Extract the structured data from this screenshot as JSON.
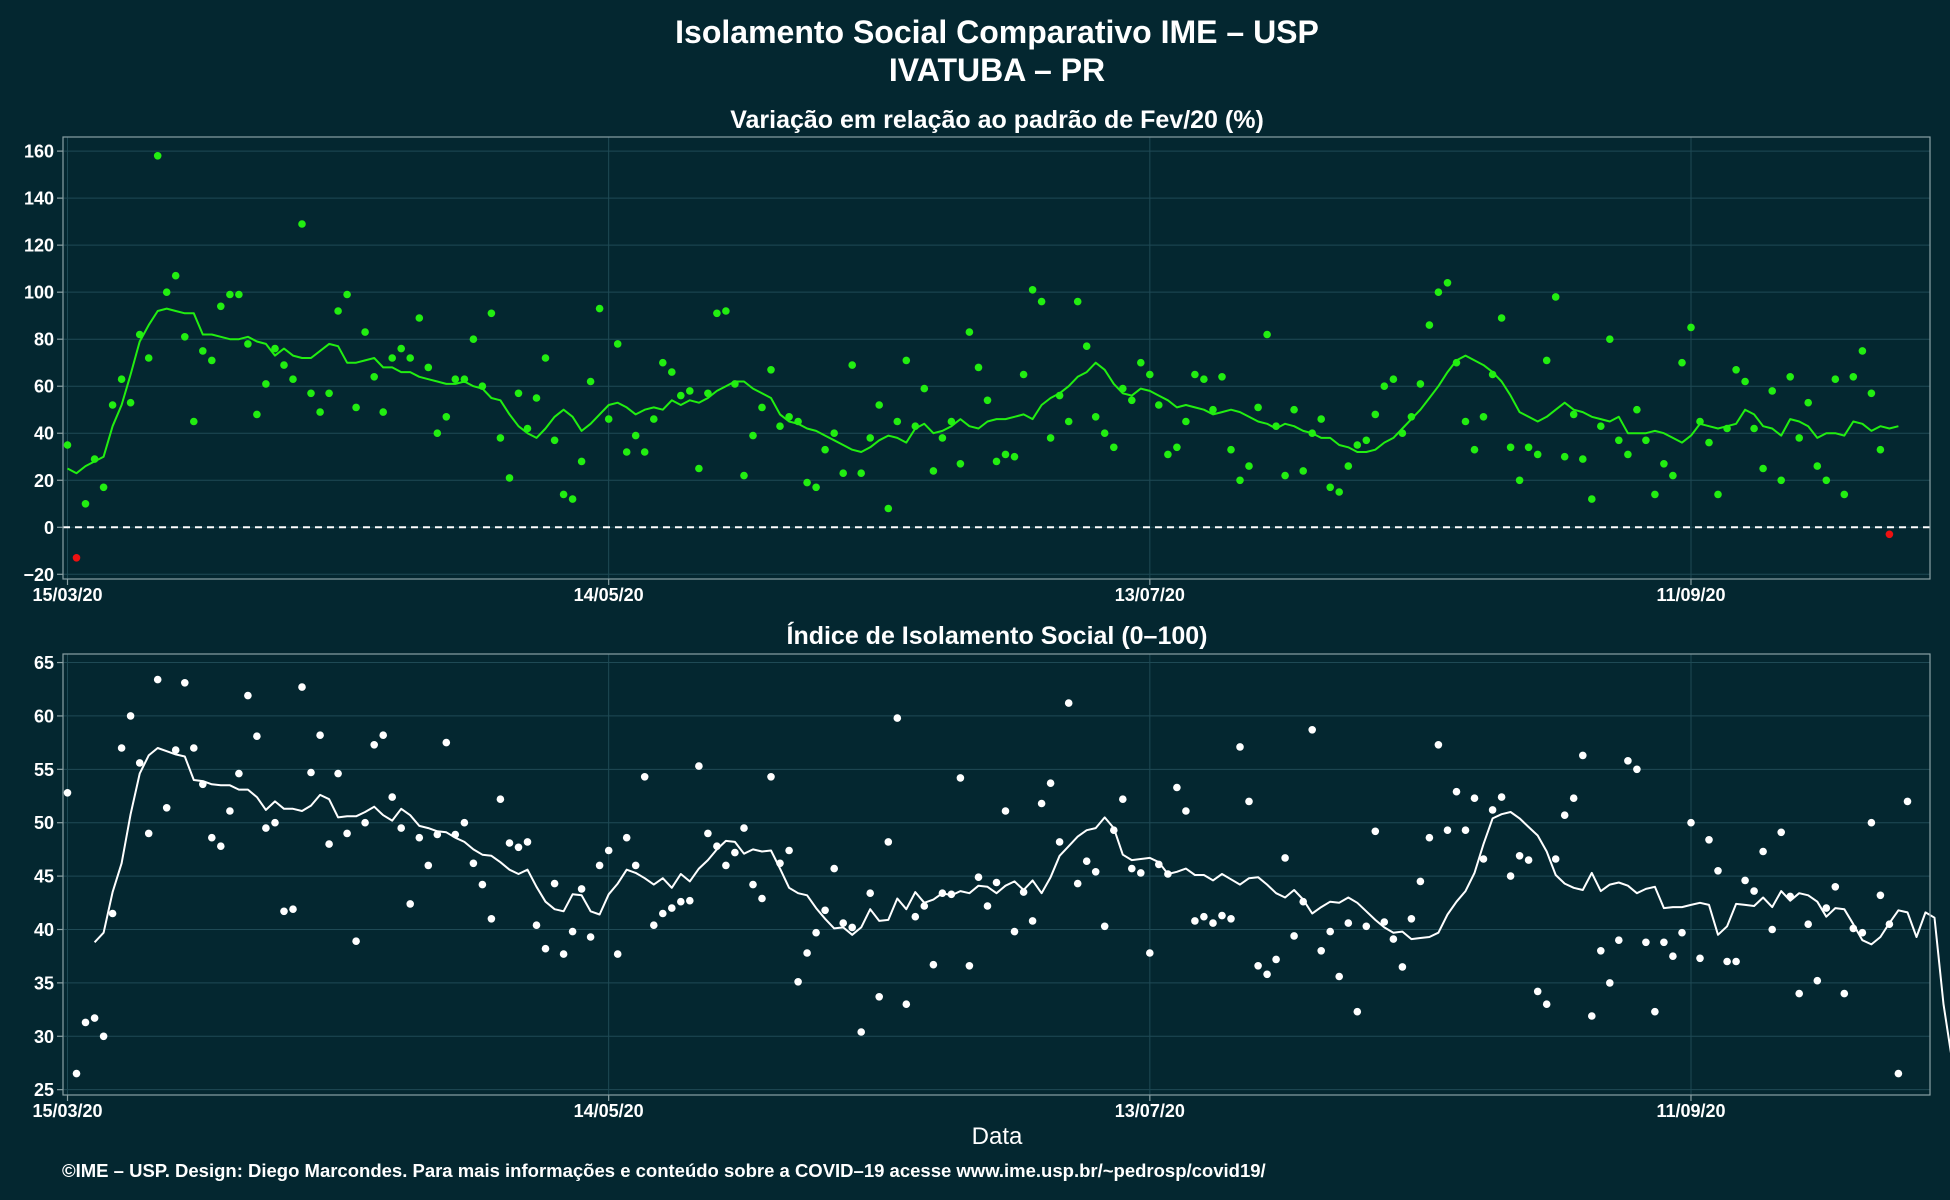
{
  "title": "Isolamento Social Comparativo IME – USP",
  "subtitle": "IVATUBA – PR",
  "footer": "©IME – USP. Design: Diego Marcondes. Para mais informações e conteúdo sobre a COVID–19 acesse www.ime.usp.br/~pedrosp/covid19/",
  "colors": {
    "background": "#042730",
    "panel_border": "#8aa0a4",
    "grid": "#1f4a55",
    "green": "#22ee11",
    "red": "#ee1111",
    "white": "#ffffff"
  },
  "chart_data": [
    {
      "type": "scatter",
      "title": "Variação em relação ao padrão de Fev/20 (%)",
      "xlabel": "",
      "ylabel": "",
      "x_tick_labels": [
        "15/03/20",
        "14/05/20",
        "13/07/20",
        "11/09/20"
      ],
      "x_tick_days": [
        0,
        60,
        120,
        180
      ],
      "yticks": [
        -20,
        0,
        20,
        40,
        60,
        80,
        100,
        120,
        140,
        160
      ],
      "ylim": [
        -22,
        166
      ],
      "xlim_days": [
        -0.5,
        206.5
      ],
      "reference_line": 0,
      "grid": true,
      "series": [
        {
          "kind": "points",
          "color": "#22ee11",
          "negative_color": "#ee1111",
          "x_start_day": 0,
          "values": [
            35,
            -13,
            10,
            29,
            17,
            52,
            63,
            53,
            82,
            72,
            158,
            100,
            107,
            81,
            45,
            75,
            71,
            94,
            99,
            99,
            78,
            48,
            61,
            76,
            69,
            63,
            129,
            57,
            49,
            57,
            92,
            99,
            51,
            83,
            64,
            49,
            72,
            76,
            72,
            89,
            68,
            40,
            47,
            63,
            63,
            80,
            60,
            91,
            38,
            21,
            57,
            42,
            55,
            72,
            37,
            14,
            12,
            28,
            62,
            93,
            46,
            78,
            32,
            39,
            32,
            46,
            70,
            66,
            56,
            58,
            25,
            57,
            91,
            92,
            61,
            22,
            39,
            51,
            67,
            43,
            47,
            45,
            19,
            17,
            33,
            40,
            23,
            69,
            23,
            38,
            52,
            8,
            45,
            71,
            43,
            59,
            24,
            38,
            45,
            27,
            83,
            68,
            54,
            28,
            31,
            30,
            65,
            101,
            96,
            38,
            56,
            45,
            96,
            77,
            47,
            40,
            34,
            59,
            54,
            70,
            65,
            52,
            31,
            34,
            45,
            65,
            63,
            50,
            64,
            33,
            20,
            26,
            51,
            82,
            43,
            22,
            50,
            24,
            40,
            46,
            17,
            15,
            26,
            35,
            37,
            48,
            60,
            63,
            40,
            47,
            61,
            86,
            100,
            104,
            70,
            45,
            33,
            47,
            65,
            89,
            34,
            20,
            34,
            31,
            71,
            98,
            30,
            48,
            29,
            12,
            43,
            80,
            37,
            31,
            50,
            37,
            14,
            27,
            22,
            70,
            85,
            45,
            36,
            14,
            42,
            67,
            62,
            42,
            25,
            58,
            20,
            64,
            38,
            53,
            26,
            20,
            63,
            14,
            64,
            75,
            57,
            33,
            -3
          ]
        },
        {
          "kind": "line",
          "color": "#22ee11",
          "x_start_day": 0,
          "values": [
            25,
            23,
            26,
            28,
            30,
            43,
            52,
            65,
            79,
            86,
            92,
            93,
            92,
            91,
            91,
            82,
            82,
            81,
            80,
            80,
            81,
            79,
            78,
            73,
            76,
            73,
            72,
            72,
            75,
            78,
            77,
            70,
            70,
            71,
            72,
            68,
            68,
            66,
            66,
            64,
            63,
            62,
            61,
            61,
            62,
            60,
            59,
            55,
            54,
            48,
            43,
            40,
            38,
            42,
            47,
            50,
            47,
            41,
            44,
            48,
            52,
            53,
            51,
            48,
            50,
            51,
            50,
            54,
            52,
            54,
            53,
            55,
            58,
            60,
            62,
            62,
            59,
            57,
            55,
            48,
            45,
            44,
            42,
            41,
            39,
            37,
            35,
            33,
            32,
            34,
            37,
            39,
            38,
            36,
            42,
            44,
            40,
            41,
            43,
            46,
            43,
            42,
            45,
            46,
            46,
            47,
            48,
            46,
            52,
            55,
            57,
            60,
            64,
            66,
            70,
            67,
            61,
            57,
            56,
            59,
            58,
            56,
            54,
            51,
            52,
            51,
            50,
            48,
            49,
            50,
            49,
            47,
            45,
            44,
            42,
            44,
            43,
            41,
            40,
            38,
            38,
            35,
            34,
            32,
            32,
            33,
            36,
            38,
            42,
            46,
            50,
            55,
            60,
            66,
            71,
            73,
            71,
            69,
            66,
            62,
            56,
            49,
            47,
            45,
            47,
            50,
            53,
            50,
            49,
            47,
            46,
            45,
            47,
            40,
            40,
            40,
            41,
            40,
            38,
            36,
            39,
            44,
            43,
            42,
            43,
            44,
            50,
            48,
            43,
            42,
            39,
            46,
            45,
            43,
            38,
            40,
            40,
            39,
            45,
            44,
            41,
            43,
            42,
            43
          ]
        }
      ]
    },
    {
      "type": "scatter",
      "title": "Índice de Isolamento Social (0–100)",
      "xlabel": "Data",
      "ylabel": "",
      "x_tick_labels": [
        "15/03/20",
        "14/05/20",
        "13/07/20",
        "11/09/20"
      ],
      "x_tick_days": [
        0,
        60,
        120,
        180
      ],
      "yticks": [
        25,
        30,
        35,
        40,
        45,
        50,
        55,
        60,
        65
      ],
      "ylim": [
        24.5,
        65.8
      ],
      "xlim_days": [
        -0.5,
        206.5
      ],
      "grid": true,
      "series": [
        {
          "kind": "points",
          "color": "#ffffff",
          "x_start_day": 0,
          "values": [
            52.8,
            26.5,
            31.3,
            31.7,
            30,
            41.5,
            57,
            60,
            55.6,
            49,
            63.4,
            51.4,
            56.8,
            63.1,
            57,
            53.6,
            48.6,
            47.8,
            51.1,
            54.6,
            61.9,
            58.1,
            49.5,
            50,
            41.7,
            41.9,
            62.7,
            54.7,
            58.2,
            48,
            54.6,
            49,
            38.9,
            50,
            57.3,
            58.2,
            52.4,
            49.5,
            42.4,
            48.6,
            46,
            48.9,
            57.5,
            48.9,
            50,
            46.2,
            44.2,
            41,
            52.2,
            48.1,
            47.7,
            48.2,
            40.4,
            38.2,
            44.3,
            37.7,
            39.8,
            43.8,
            39.3,
            46,
            47.4,
            37.7,
            48.6,
            46,
            54.3,
            40.4,
            41.5,
            42,
            42.6,
            42.7,
            55.3,
            49,
            47.8,
            46,
            47.2,
            49.5,
            44.2,
            42.9,
            54.3,
            46.2,
            47.4,
            35.1,
            37.8,
            39.7,
            41.8,
            45.7,
            40.6,
            40.2,
            30.4,
            43.4,
            33.7,
            48.2,
            59.8,
            33,
            41.2,
            42.2,
            36.7,
            43.4,
            43.3,
            54.2,
            36.6,
            44.9,
            42.2,
            44.4,
            51.1,
            39.8,
            43.5,
            40.8,
            51.8,
            53.7,
            48.2,
            61.2,
            44.3,
            46.4,
            45.4,
            40.3,
            49.3,
            52.2,
            45.7,
            45.3,
            37.8,
            46.1,
            45.2,
            53.3,
            51.1,
            40.8,
            41.2,
            40.6,
            41.3,
            41,
            57.1,
            52,
            36.6,
            35.8,
            37.2,
            46.7,
            39.4,
            42.6,
            58.7,
            38,
            39.8,
            35.6,
            40.6,
            32.3,
            40.3,
            49.2,
            40.7,
            39.1,
            36.5,
            41,
            44.5,
            48.6,
            57.3,
            49.3,
            52.9,
            49.3,
            52.3,
            46.6,
            51.2,
            52.4,
            45,
            46.9,
            46.5,
            34.2,
            33,
            46.6,
            50.7,
            52.3,
            56.3,
            31.9,
            38,
            35,
            39,
            55.8,
            55,
            38.8,
            32.3,
            38.8,
            37.5,
            39.7,
            50,
            37.3,
            48.4,
            45.5,
            37,
            37,
            44.6,
            43.6,
            47.3,
            40,
            49.1,
            43.1,
            34,
            40.5,
            35.2,
            42,
            44,
            34,
            40.1,
            39.7,
            50,
            43.2,
            40.5,
            26.5,
            52
          ]
        },
        {
          "kind": "line",
          "color": "#ffffff",
          "x_start_day": 3,
          "values": [
            38.8,
            39.7,
            43.5,
            46.2,
            50.8,
            54.6,
            56.3,
            57,
            56.7,
            56.4,
            56.2,
            54,
            53.9,
            53.6,
            53.5,
            53.5,
            53.1,
            53.1,
            52.4,
            51.2,
            52,
            51.3,
            51.3,
            51.1,
            51.6,
            52.6,
            52.2,
            50.5,
            50.6,
            50.6,
            51,
            51.5,
            50.7,
            50.2,
            51.3,
            50.7,
            49.7,
            49.5,
            49.2,
            49.1,
            48.6,
            48.2,
            47.5,
            47,
            46.9,
            46.3,
            45.6,
            45.2,
            45.6,
            44,
            42.6,
            41.9,
            41.7,
            43.3,
            43.2,
            41.7,
            41.4,
            43.3,
            44.3,
            45.6,
            45.3,
            44.8,
            44.2,
            44.8,
            43.9,
            45.2,
            44.5,
            45.7,
            46.5,
            47.5,
            48.3,
            48.2,
            47.1,
            47.5,
            47.3,
            47.4,
            45.7,
            43.9,
            43.4,
            43.2,
            42,
            41,
            40.1,
            40.2,
            39.5,
            40.2,
            41.9,
            40.8,
            40.9,
            42.9,
            41.9,
            43.5,
            42.5,
            42.8,
            43.4,
            43.2,
            43.6,
            43.4,
            44.1,
            44,
            43.4,
            44.1,
            44.5,
            43.7,
            44.6,
            43.4,
            44.9,
            46.9,
            47.8,
            48.7,
            49.3,
            49.5,
            50.5,
            49.5,
            47,
            46.5,
            46.6,
            46.7,
            46.3,
            45.2,
            45.4,
            45.7,
            45.1,
            45.1,
            44.6,
            45.2,
            44.7,
            44.2,
            44.8,
            44.9,
            44.2,
            43.4,
            43,
            43.7,
            42.8,
            41.5,
            42.1,
            42.6,
            42.5,
            43,
            42.5,
            41.7,
            40.9,
            40.2,
            39.7,
            39.8,
            39.1,
            39.2,
            39.3,
            39.7,
            41.4,
            42.6,
            43.6,
            45.3,
            48,
            50.4,
            50.8,
            51,
            50.4,
            49.6,
            48.8,
            47.3,
            45.1,
            44.3,
            43.9,
            43.7,
            45.3,
            43.6,
            44.2,
            44.4,
            44.1,
            43.4,
            43.8,
            44,
            42,
            42.1,
            42.1,
            42.3,
            42.5,
            42.3,
            39.5,
            40.3,
            42.4,
            42.3,
            42.2,
            43,
            42.1,
            43.6,
            42.7,
            43.4,
            43.2,
            42.6,
            41.2,
            42,
            41.9,
            40.5,
            39,
            38.6,
            39.3,
            40.6,
            41.8,
            41.6,
            39.3,
            41.6,
            41.1,
            33,
            27.5
          ]
        }
      ]
    }
  ]
}
